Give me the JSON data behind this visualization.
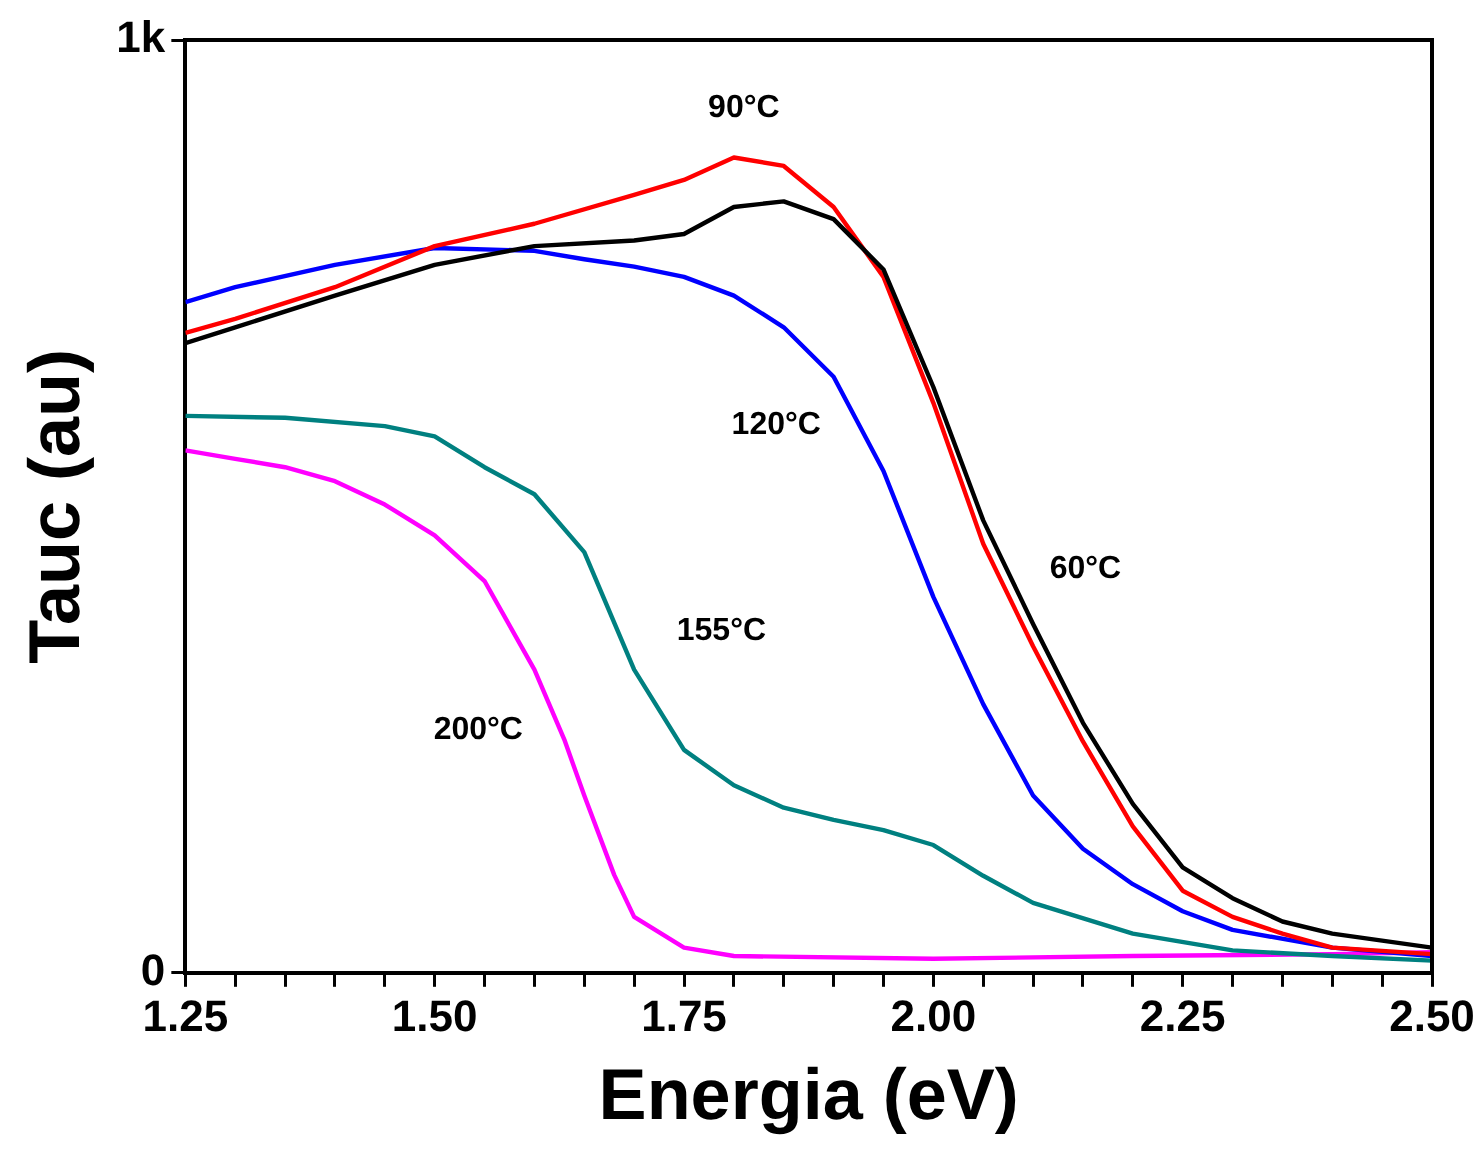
{
  "chart_data": {
    "type": "line",
    "xlabel": "Energia (eV)",
    "ylabel": "Tauc (au)",
    "xlim": [
      1.25,
      2.5
    ],
    "ylim": [
      0,
      1000
    ],
    "xticks": [
      {
        "value": 1.25,
        "label": "1.25"
      },
      {
        "value": 1.3,
        "label": null
      },
      {
        "value": 1.35,
        "label": null
      },
      {
        "value": 1.4,
        "label": null
      },
      {
        "value": 1.45,
        "label": null
      },
      {
        "value": 1.5,
        "label": "1.50"
      },
      {
        "value": 1.55,
        "label": null
      },
      {
        "value": 1.6,
        "label": null
      },
      {
        "value": 1.65,
        "label": null
      },
      {
        "value": 1.7,
        "label": null
      },
      {
        "value": 1.75,
        "label": "1.75"
      },
      {
        "value": 1.8,
        "label": null
      },
      {
        "value": 1.85,
        "label": null
      },
      {
        "value": 1.9,
        "label": null
      },
      {
        "value": 1.95,
        "label": null
      },
      {
        "value": 2.0,
        "label": "2.00"
      },
      {
        "value": 2.05,
        "label": null
      },
      {
        "value": 2.1,
        "label": null
      },
      {
        "value": 2.15,
        "label": null
      },
      {
        "value": 2.2,
        "label": null
      },
      {
        "value": 2.25,
        "label": "2.25"
      },
      {
        "value": 2.3,
        "label": null
      },
      {
        "value": 2.35,
        "label": null
      },
      {
        "value": 2.4,
        "label": null
      },
      {
        "value": 2.45,
        "label": null
      },
      {
        "value": 2.5,
        "label": "2.50"
      }
    ],
    "yticks": [
      {
        "value": 0,
        "label": "0"
      },
      {
        "value": 1000,
        "label": "1k"
      }
    ],
    "grid": false,
    "legend": false,
    "marker": "none",
    "line_style": "solid",
    "series": [
      {
        "name": "60°C",
        "color": "#000000",
        "x": [
          1.25,
          1.3,
          1.4,
          1.5,
          1.6,
          1.7,
          1.75,
          1.8,
          1.85,
          1.9,
          1.95,
          2.0,
          2.05,
          2.1,
          2.15,
          2.2,
          2.25,
          2.3,
          2.35,
          2.4,
          2.5
        ],
        "values": [
          675,
          692,
          726,
          759,
          779,
          785,
          792,
          821,
          827,
          808,
          754,
          628,
          485,
          374,
          268,
          181,
          113,
          80,
          55,
          42,
          27
        ]
      },
      {
        "name": "90°C",
        "color": "#ff0000",
        "x": [
          1.25,
          1.3,
          1.4,
          1.5,
          1.6,
          1.7,
          1.75,
          1.8,
          1.85,
          1.9,
          1.95,
          2.0,
          2.05,
          2.1,
          2.15,
          2.2,
          2.25,
          2.3,
          2.35,
          2.4,
          2.5
        ],
        "values": [
          686,
          701,
          735,
          779,
          803,
          834,
          850,
          874,
          865,
          821,
          746,
          611,
          460,
          350,
          248,
          157,
          88,
          60,
          42,
          27,
          20
        ]
      },
      {
        "name": "120°C",
        "color": "#0000ff",
        "x": [
          1.25,
          1.3,
          1.4,
          1.5,
          1.6,
          1.65,
          1.7,
          1.75,
          1.8,
          1.85,
          1.9,
          1.95,
          2.0,
          2.05,
          2.1,
          2.15,
          2.2,
          2.25,
          2.3,
          2.4,
          2.5
        ],
        "values": [
          719,
          735,
          759,
          777,
          774,
          765,
          757,
          746,
          726,
          692,
          639,
          538,
          403,
          288,
          190,
          133,
          95,
          66,
          46,
          27,
          18
        ]
      },
      {
        "name": "155°C",
        "color": "#008080",
        "x": [
          1.25,
          1.35,
          1.45,
          1.5,
          1.55,
          1.6,
          1.65,
          1.7,
          1.75,
          1.8,
          1.85,
          1.9,
          1.95,
          2.0,
          2.05,
          2.1,
          2.2,
          2.3,
          2.4,
          2.5
        ],
        "values": [
          597,
          595,
          586,
          575,
          542,
          513,
          451,
          325,
          239,
          201,
          177,
          164,
          153,
          137,
          104,
          75,
          42,
          24,
          18,
          13
        ]
      },
      {
        "name": "200°C",
        "color": "#ff00ff",
        "x": [
          1.25,
          1.3,
          1.35,
          1.4,
          1.45,
          1.5,
          1.55,
          1.6,
          1.63,
          1.65,
          1.68,
          1.7,
          1.75,
          1.8,
          2.0,
          2.2,
          2.4,
          2.5
        ],
        "values": [
          560,
          551,
          542,
          527,
          502,
          469,
          420,
          325,
          250,
          190,
          105,
          60,
          27,
          18,
          15,
          18,
          20,
          22
        ]
      }
    ]
  }
}
